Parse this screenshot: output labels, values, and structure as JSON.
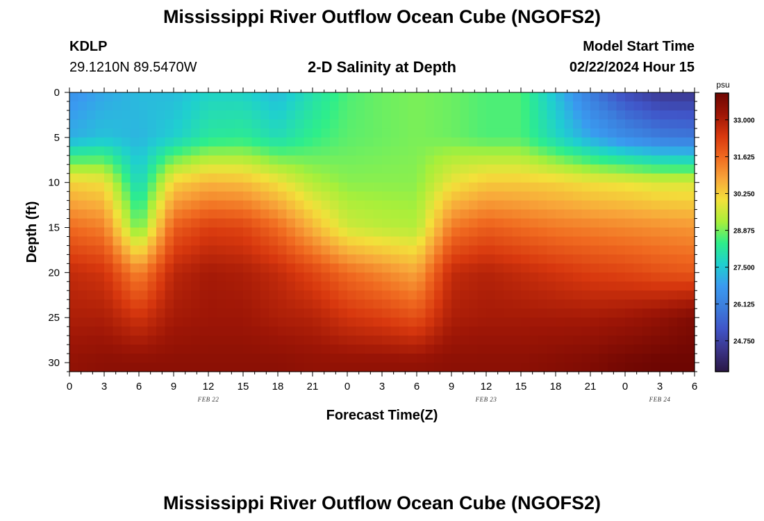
{
  "header": {
    "title": "Mississippi River Outflow Ocean Cube (NGOFS2)",
    "station_id": "KDLP",
    "station_coords": "29.1210N  89.5470W",
    "subtitle": "2-D Salinity at Depth",
    "start_label": "Model Start Time",
    "start_value": "02/22/2024 Hour 15"
  },
  "footer": {
    "title": "Mississippi River Outflow Ocean Cube (NGOFS2)"
  },
  "chart_data": {
    "type": "heatmap",
    "xlabel": "Forecast Time(Z)",
    "ylabel": "Depth (ft)",
    "x_tick_labels": [
      "0",
      "3",
      "6",
      "9",
      "12",
      "15",
      "18",
      "21",
      "0",
      "3",
      "6",
      "9",
      "12",
      "15",
      "18",
      "21",
      "0",
      "3",
      "6"
    ],
    "date_labels": [
      {
        "text": "FEB 22",
        "hour": 12
      },
      {
        "text": "FEB 23",
        "hour": 36
      },
      {
        "text": "FEB 24",
        "hour": 51
      }
    ],
    "x_range_hours": [
      0,
      54
    ],
    "y_ticks": [
      0,
      5,
      10,
      15,
      20,
      25,
      30
    ],
    "ylim": [
      0,
      31
    ],
    "colorbar": {
      "unit": "psu",
      "range": [
        23.6,
        34.0
      ],
      "ticks": [
        "33.000",
        "31.625",
        "30.250",
        "28.875",
        "27.500",
        "26.125",
        "24.750"
      ],
      "colormap": [
        "#2a1745",
        "#3b3488",
        "#4055c8",
        "#3c7ddc",
        "#3a9af0",
        "#1fcfd0",
        "#2eee8a",
        "#a9ef3a",
        "#f3e13a",
        "#f8a63a",
        "#f06a20",
        "#d8380e",
        "#9e1606",
        "#6e0602"
      ]
    },
    "salinity_grid": {
      "x_hours": [
        0,
        3,
        6,
        9,
        12,
        15,
        18,
        21,
        24,
        27,
        30,
        33,
        36,
        39,
        42,
        45,
        48,
        51,
        54
      ],
      "y_depths_ft": [
        0,
        5,
        10,
        15,
        20,
        25,
        30
      ],
      "values": [
        [
          26.6,
          27.0,
          27.3,
          27.3,
          27.7,
          27.7,
          27.3,
          28.0,
          28.6,
          28.8,
          28.9,
          28.8,
          28.6,
          28.6,
          27.4,
          26.0,
          25.0,
          24.5,
          24.5
        ],
        [
          27.1,
          27.4,
          27.2,
          27.6,
          28.2,
          28.3,
          27.9,
          28.4,
          28.7,
          28.8,
          28.9,
          28.8,
          28.6,
          28.6,
          27.8,
          27.0,
          26.4,
          26.0,
          25.9
        ],
        [
          30.2,
          30.0,
          27.7,
          30.2,
          30.6,
          30.5,
          30.0,
          29.3,
          29.0,
          29.0,
          29.0,
          29.9,
          30.3,
          30.3,
          30.2,
          30.0,
          29.9,
          29.7,
          29.7
        ],
        [
          31.6,
          31.3,
          28.7,
          31.8,
          32.3,
          32.2,
          31.6,
          30.6,
          29.6,
          29.4,
          29.3,
          31.4,
          31.8,
          31.6,
          31.4,
          31.3,
          31.2,
          31.1,
          31.0
        ],
        [
          32.7,
          32.5,
          31.2,
          32.8,
          33.1,
          33.0,
          32.7,
          32.2,
          31.6,
          31.2,
          30.8,
          32.7,
          32.9,
          32.7,
          32.5,
          32.3,
          32.2,
          32.0,
          31.9
        ],
        [
          33.0,
          33.0,
          32.5,
          33.1,
          33.2,
          33.2,
          33.0,
          32.9,
          32.5,
          32.3,
          32.0,
          33.0,
          33.1,
          33.1,
          33.1,
          33.1,
          33.2,
          33.4,
          33.7
        ],
        [
          33.4,
          33.5,
          33.5,
          33.5,
          33.5,
          33.5,
          33.5,
          33.4,
          33.4,
          33.4,
          33.4,
          33.5,
          33.5,
          33.5,
          33.6,
          33.7,
          33.9,
          34.0,
          34.0
        ]
      ]
    }
  }
}
